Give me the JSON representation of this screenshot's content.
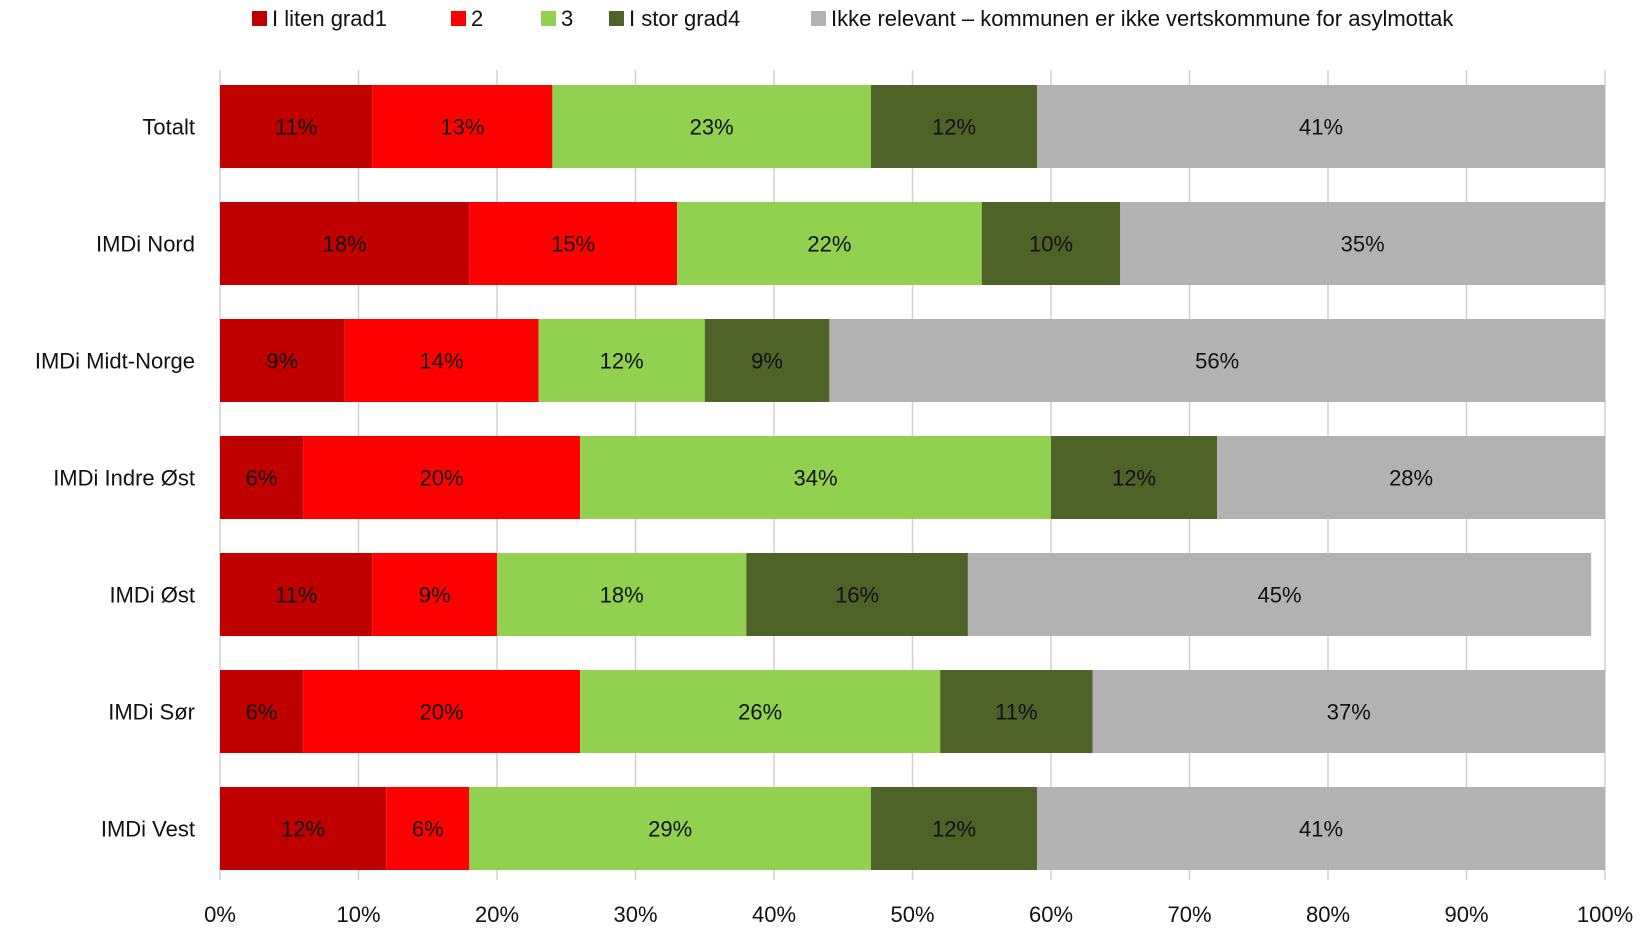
{
  "chart_data": {
    "type": "bar",
    "orientation": "horizontal",
    "stacked": true,
    "categories": [
      "Totalt",
      "IMDi Nord",
      "IMDi Midt-Norge",
      "IMDi Indre Øst",
      "IMDi Øst",
      "IMDi Sør",
      "IMDi Vest"
    ],
    "series": [
      {
        "name": "I liten grad1",
        "color": "#c00000",
        "values": [
          11,
          18,
          9,
          6,
          11,
          6,
          12
        ],
        "labels": [
          "11%",
          "18%",
          "9%",
          "6%",
          "11%",
          "6%",
          "12%"
        ]
      },
      {
        "name": "2",
        "color": "#ff0000",
        "values": [
          13,
          15,
          14,
          20,
          9,
          20,
          6
        ],
        "labels": [
          "13%",
          "15%",
          "14%",
          "20%",
          "9%",
          "20%",
          "6%"
        ]
      },
      {
        "name": "3",
        "color": "#92d050",
        "values": [
          23,
          22,
          12,
          34,
          18,
          26,
          29
        ],
        "labels": [
          "23%",
          "22%",
          "12%",
          "34%",
          "18%",
          "26%",
          "29%"
        ]
      },
      {
        "name": "I stor grad4",
        "color": "#4f6228",
        "values": [
          12,
          10,
          9,
          12,
          16,
          11,
          12
        ],
        "labels": [
          "12%",
          "10%",
          "9%",
          "12%",
          "16%",
          "11%",
          "12%"
        ]
      },
      {
        "name": "Ikke relevant – kommunen er ikke vertskommune for asylmottak",
        "color": "#b2b2b2",
        "values": [
          41,
          35,
          56,
          28,
          45,
          37,
          41
        ],
        "labels": [
          "41%",
          "35%",
          "56%",
          "28%",
          "45%",
          "37%",
          "41%"
        ]
      }
    ],
    "xlim": [
      0,
      100
    ],
    "x_ticks": [
      "0%",
      "10%",
      "20%",
      "30%",
      "40%",
      "50%",
      "60%",
      "70%",
      "80%",
      "90%",
      "100%"
    ],
    "grid": true,
    "legend_position": "top"
  }
}
